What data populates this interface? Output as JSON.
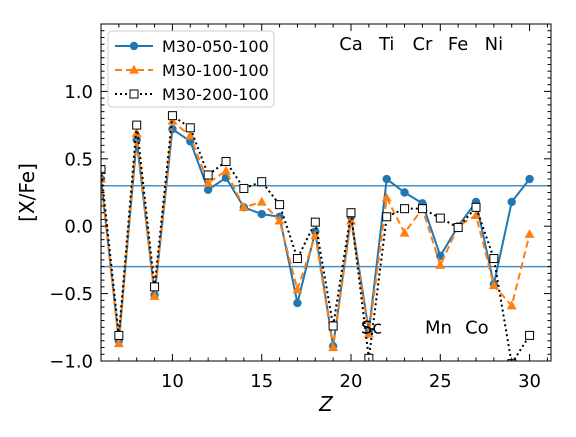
{
  "chart_data": {
    "type": "line",
    "xlabel": "Z",
    "ylabel": "[X/Fe]",
    "xlim": [
      6,
      31.2
    ],
    "ylim": [
      -1.0,
      1.5
    ],
    "xticks": [
      10,
      15,
      20,
      25,
      30
    ],
    "yticks": [
      1.0,
      0.5,
      0.0,
      -0.5,
      -1.0
    ],
    "xtick_labels": [
      "10",
      "15",
      "20",
      "25",
      "30"
    ],
    "ytick_labels": [
      "1.0",
      "0.5",
      "0.0",
      "−0.5",
      "−1.0"
    ],
    "grid": false,
    "legend_position": "upper-left",
    "hlines": [
      0.3,
      -0.3
    ],
    "hline_color": "#4a90c4",
    "element_labels": [
      {
        "text": "Ca",
        "x": 20,
        "y": 1.35
      },
      {
        "text": "Ti",
        "x": 22,
        "y": 1.35
      },
      {
        "text": "Cr",
        "x": 24,
        "y": 1.35
      },
      {
        "text": "Fe",
        "x": 26,
        "y": 1.35
      },
      {
        "text": "Ni",
        "x": 28,
        "y": 1.35
      },
      {
        "text": "Sc",
        "x": 21.15,
        "y": -0.75
      },
      {
        "text": "Mn",
        "x": 24.9,
        "y": -0.75
      },
      {
        "text": "Co",
        "x": 27.05,
        "y": -0.75
      }
    ],
    "series": [
      {
        "name": "M30-050-100",
        "color": "#1f77b4",
        "linestyle": "solid",
        "marker": "circle",
        "x": [
          6,
          7,
          8,
          9,
          10,
          11,
          12,
          13,
          14,
          15,
          16,
          17,
          18,
          19,
          20,
          21,
          22,
          23,
          24,
          25,
          26,
          27,
          28,
          29,
          30
        ],
        "y": [
          0.35,
          -0.85,
          0.64,
          -0.51,
          0.72,
          0.63,
          0.27,
          0.36,
          0.14,
          0.09,
          0.07,
          -0.57,
          -0.04,
          -0.89,
          0.07,
          -0.78,
          0.35,
          0.25,
          0.17,
          -0.22,
          0.0,
          0.18,
          -0.43,
          0.18,
          0.35
        ]
      },
      {
        "name": "M30-100-100",
        "color": "#ff7f0e",
        "linestyle": "dashed",
        "marker": "triangle",
        "x": [
          6,
          7,
          8,
          9,
          10,
          11,
          12,
          13,
          14,
          15,
          16,
          17,
          18,
          19,
          20,
          21,
          22,
          23,
          24,
          25,
          26,
          27,
          28,
          29,
          30
        ],
        "y": [
          0.35,
          -0.87,
          0.69,
          -0.52,
          0.78,
          0.67,
          0.32,
          0.41,
          0.14,
          0.18,
          0.04,
          -0.47,
          -0.07,
          -0.9,
          0.04,
          -0.8,
          0.21,
          -0.05,
          0.13,
          -0.29,
          0.0,
          0.08,
          -0.44,
          -0.59,
          -0.06
        ]
      },
      {
        "name": "M30-200-100",
        "color": "#000000",
        "linestyle": "dotted",
        "marker": "square",
        "x": [
          6,
          7,
          8,
          9,
          10,
          11,
          12,
          13,
          14,
          15,
          16,
          17,
          18,
          19,
          20,
          21,
          22,
          23,
          24,
          25,
          26,
          27,
          28,
          29,
          30
        ],
        "y": [
          0.42,
          -0.81,
          0.75,
          -0.45,
          0.82,
          0.73,
          0.38,
          0.48,
          0.28,
          0.33,
          0.16,
          -0.24,
          0.03,
          -0.74,
          0.1,
          -0.98,
          0.07,
          0.13,
          0.13,
          0.06,
          -0.01,
          0.14,
          -0.24,
          -1.02,
          -0.81
        ]
      }
    ]
  }
}
